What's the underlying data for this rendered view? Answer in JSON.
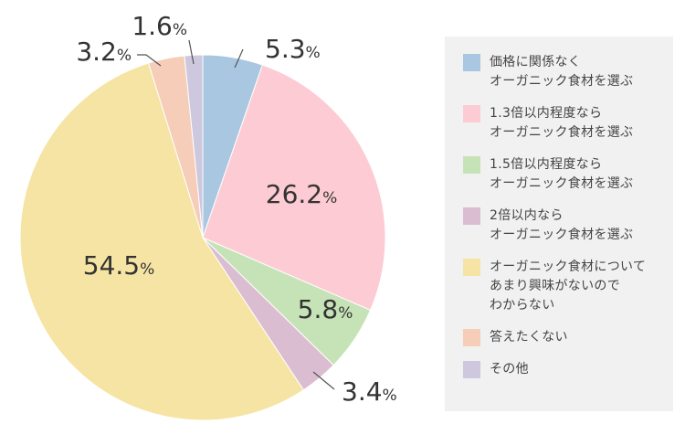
{
  "chart_data": {
    "type": "pie",
    "start": "12 o'clock",
    "direction": "clockwise",
    "slices": [
      {
        "label": "価格に関係なく\nオーガニック食材を選ぶ",
        "value": 5.3,
        "value_label": "5.3",
        "color": "#a9c7e0"
      },
      {
        "label": "1.3倍以内程度なら\nオーガニック食材を選ぶ",
        "value": 26.2,
        "value_label": "26.2",
        "color": "#fdcbd3"
      },
      {
        "label": "1.5倍以内程度なら\nオーガニック食材を選ぶ",
        "value": 5.8,
        "value_label": "5.8",
        "color": "#c6e3b7"
      },
      {
        "label": "2倍以内なら\nオーガニック食材を選ぶ",
        "value": 3.4,
        "value_label": "3.4",
        "color": "#dbbdd2"
      },
      {
        "label": "オーガニック食材について\nあまり興味がないので\nわからない",
        "value": 54.5,
        "value_label": "54.5",
        "color": "#f5e4a3"
      },
      {
        "label": "答えたくない",
        "value": 3.2,
        "value_label": "3.2",
        "color": "#f5cdb9"
      },
      {
        "label": "その他",
        "value": 1.6,
        "value_label": "1.6",
        "color": "#cdc8de"
      }
    ],
    "unit": "%",
    "legend_position": "right"
  }
}
